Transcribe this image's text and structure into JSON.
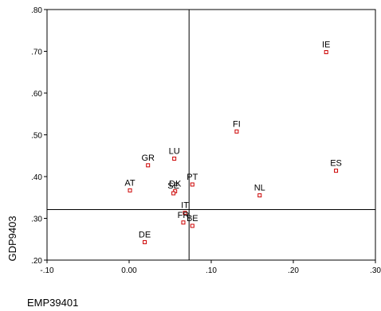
{
  "chart_data": {
    "type": "scatter",
    "xlabel": "EMP39401",
    "ylabel": "GDP9403",
    "xlim": [
      -0.1,
      0.3
    ],
    "ylim": [
      0.2,
      0.8
    ],
    "xticks": [
      -0.1,
      0.0,
      0.1,
      0.2,
      0.3
    ],
    "xtick_labels": [
      "-.10",
      "0.00",
      ".10",
      ".20",
      ".30"
    ],
    "yticks": [
      0.2,
      0.3,
      0.4,
      0.5,
      0.6,
      0.7,
      0.8
    ],
    "ytick_labels": [
      ".20",
      ".30",
      ".40",
      ".50",
      ".60",
      ".70",
      ".80"
    ],
    "reference_lines": {
      "x": 0.073,
      "y": 0.321
    },
    "grid": false,
    "marker_color": "#cc0000",
    "points": [
      {
        "label": "IE",
        "x": 0.24,
        "y": 0.698
      },
      {
        "label": "FI",
        "x": 0.131,
        "y": 0.508
      },
      {
        "label": "LU",
        "x": 0.055,
        "y": 0.443
      },
      {
        "label": "GR",
        "x": 0.023,
        "y": 0.427
      },
      {
        "label": "ES",
        "x": 0.252,
        "y": 0.414
      },
      {
        "label": "PT",
        "x": 0.077,
        "y": 0.381
      },
      {
        "label": "AT",
        "x": 0.001,
        "y": 0.367
      },
      {
        "label": "DK",
        "x": 0.056,
        "y": 0.365
      },
      {
        "label": "SE",
        "x": 0.054,
        "y": 0.36
      },
      {
        "label": "NL",
        "x": 0.159,
        "y": 0.355
      },
      {
        "label": "IT",
        "x": 0.068,
        "y": 0.313
      },
      {
        "label": "FR",
        "x": 0.066,
        "y": 0.29
      },
      {
        "label": "BE",
        "x": 0.077,
        "y": 0.282
      },
      {
        "label": "DE",
        "x": 0.019,
        "y": 0.243
      }
    ]
  }
}
